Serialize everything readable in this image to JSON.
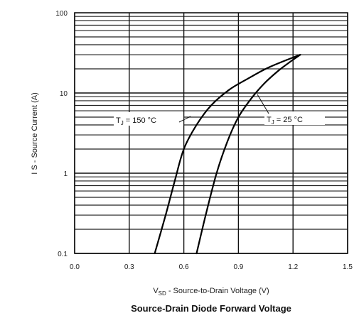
{
  "chart_data": {
    "type": "line",
    "title": "Source-Drain Diode Forward Voltage",
    "xlabel": "V",
    "xlabel_sub": "SD",
    "xlabel_rest": " - Source-to-Drain Voltage (V)",
    "ylabel": "I S - Source Current (A)",
    "x_ticks": [
      "0.0",
      "0.3",
      "0.6",
      "0.9",
      "1.2",
      "1.5"
    ],
    "y_ticks": [
      "0.1",
      "1",
      "10",
      "100"
    ],
    "xlim": [
      0,
      1.5
    ],
    "ylim": [
      0.1,
      100
    ],
    "y_scale": "log",
    "grid": true,
    "series": [
      {
        "name": "T J = 150 °C",
        "label_main": "T",
        "label_sub": "J",
        "label_rest": " = 150 °C",
        "x": [
          0.44,
          0.5,
          0.55,
          0.6,
          0.67,
          0.75,
          0.85,
          0.95,
          1.05,
          1.15,
          1.24
        ],
        "y": [
          0.1,
          0.3,
          0.8,
          2.0,
          4.0,
          7.0,
          11.0,
          15.0,
          20.0,
          25.0,
          30.0
        ]
      },
      {
        "name": "T J = 25 °C",
        "label_main": "T",
        "label_sub": "J",
        "label_rest": " = 25 °C",
        "x": [
          0.67,
          0.72,
          0.78,
          0.84,
          0.9,
          0.97,
          1.04,
          1.12,
          1.19,
          1.24
        ],
        "y": [
          0.1,
          0.3,
          1.0,
          2.5,
          5.0,
          8.5,
          13.0,
          19.0,
          25.0,
          30.0
        ]
      }
    ]
  }
}
